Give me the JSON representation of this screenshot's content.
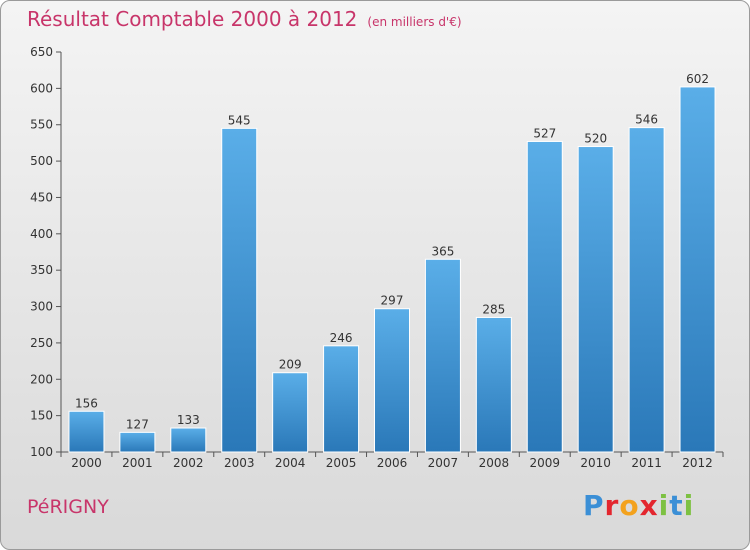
{
  "title": {
    "main": "Résultat Comptable 2000 à 2012",
    "unit": "(en milliers d'€)"
  },
  "footer": {
    "town": "PéRIGNY",
    "logo": "Proxiti"
  },
  "colors": {
    "title": "#c8356a",
    "bar_top": "#5aaee8",
    "bar_bottom": "#2a78b8",
    "background": "#e6e6e6"
  },
  "chart_data": {
    "type": "bar",
    "title": "Résultat Comptable 2000 à 2012",
    "subtitle": "(en milliers d'€)",
    "categories": [
      "2000",
      "2001",
      "2002",
      "2003",
      "2004",
      "2005",
      "2006",
      "2007",
      "2008",
      "2009",
      "2010",
      "2011",
      "2012"
    ],
    "values": [
      156,
      127,
      133,
      545,
      209,
      246,
      297,
      365,
      285,
      527,
      520,
      546,
      602
    ],
    "ylim": [
      100,
      650
    ],
    "yticks": [
      100,
      150,
      200,
      250,
      300,
      350,
      400,
      450,
      500,
      550,
      600,
      650
    ],
    "grid": false,
    "data_labels": true
  }
}
